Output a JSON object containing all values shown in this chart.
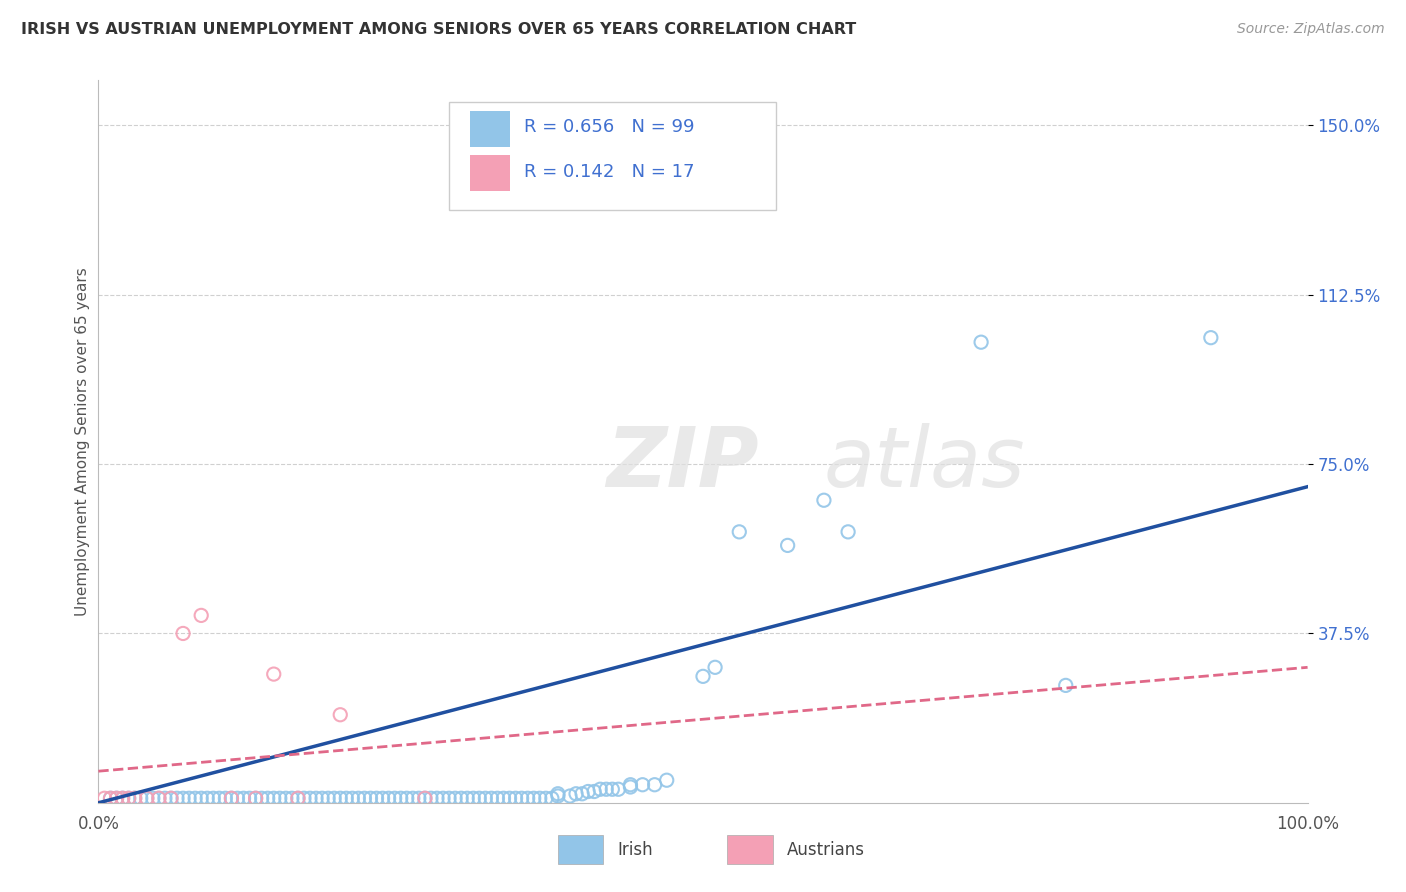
{
  "title": "IRISH VS AUSTRIAN UNEMPLOYMENT AMONG SENIORS OVER 65 YEARS CORRELATION CHART",
  "source": "Source: ZipAtlas.com",
  "ylabel": "Unemployment Among Seniors over 65 years",
  "xlim": [
    0.0,
    1.0
  ],
  "ylim": [
    0.0,
    1.6
  ],
  "xticks": [
    0.0,
    1.0
  ],
  "xticklabels": [
    "0.0%",
    "100.0%"
  ],
  "ytick_positions": [
    0.375,
    0.75,
    1.125,
    1.5
  ],
  "yticklabels": [
    "37.5%",
    "75.0%",
    "112.5%",
    "150.0%"
  ],
  "irish_color": "#92C5E8",
  "austrians_color": "#F4A0B5",
  "irish_line_color": "#2050A0",
  "austrians_line_color": "#E06888",
  "irish_R": 0.656,
  "irish_N": 99,
  "austrians_R": 0.142,
  "austrians_N": 17,
  "legend_text_color": "#4070D0",
  "background_color": "#FFFFFF",
  "grid_color": "#D0D0D0",
  "watermark_zip": "ZIP",
  "watermark_atlas": "atlas",
  "irish_label": "Irish",
  "austrians_label": "Austrians",
  "irish_x": [
    0.01,
    0.015,
    0.02,
    0.025,
    0.03,
    0.035,
    0.04,
    0.045,
    0.05,
    0.055,
    0.06,
    0.065,
    0.07,
    0.075,
    0.08,
    0.085,
    0.09,
    0.095,
    0.1,
    0.105,
    0.11,
    0.115,
    0.12,
    0.125,
    0.13,
    0.135,
    0.14,
    0.145,
    0.15,
    0.155,
    0.16,
    0.165,
    0.17,
    0.175,
    0.18,
    0.185,
    0.19,
    0.195,
    0.2,
    0.205,
    0.21,
    0.215,
    0.22,
    0.225,
    0.23,
    0.235,
    0.24,
    0.245,
    0.25,
    0.255,
    0.26,
    0.265,
    0.27,
    0.275,
    0.28,
    0.285,
    0.29,
    0.295,
    0.3,
    0.305,
    0.31,
    0.315,
    0.32,
    0.325,
    0.33,
    0.335,
    0.34,
    0.345,
    0.35,
    0.355,
    0.36,
    0.365,
    0.37,
    0.375,
    0.38,
    0.38,
    0.39,
    0.395,
    0.4,
    0.405,
    0.41,
    0.415,
    0.42,
    0.425,
    0.43,
    0.44,
    0.44,
    0.45,
    0.46,
    0.47,
    0.5,
    0.51,
    0.53,
    0.57,
    0.6,
    0.62,
    0.73,
    0.8,
    0.92
  ],
  "irish_y": [
    0.01,
    0.01,
    0.01,
    0.01,
    0.01,
    0.01,
    0.01,
    0.01,
    0.01,
    0.01,
    0.01,
    0.01,
    0.01,
    0.01,
    0.01,
    0.01,
    0.01,
    0.01,
    0.01,
    0.01,
    0.01,
    0.01,
    0.01,
    0.01,
    0.01,
    0.01,
    0.01,
    0.01,
    0.01,
    0.01,
    0.01,
    0.01,
    0.01,
    0.01,
    0.01,
    0.01,
    0.01,
    0.01,
    0.01,
    0.01,
    0.01,
    0.01,
    0.01,
    0.01,
    0.01,
    0.01,
    0.01,
    0.01,
    0.01,
    0.01,
    0.01,
    0.01,
    0.01,
    0.01,
    0.01,
    0.01,
    0.01,
    0.01,
    0.01,
    0.01,
    0.01,
    0.01,
    0.01,
    0.01,
    0.01,
    0.01,
    0.01,
    0.01,
    0.01,
    0.01,
    0.01,
    0.01,
    0.01,
    0.01,
    0.015,
    0.02,
    0.015,
    0.02,
    0.02,
    0.025,
    0.025,
    0.03,
    0.03,
    0.03,
    0.03,
    0.035,
    0.04,
    0.04,
    0.04,
    0.05,
    0.28,
    0.3,
    0.6,
    0.57,
    0.67,
    0.6,
    1.02,
    0.26,
    1.03
  ],
  "austrians_x": [
    0.005,
    0.01,
    0.015,
    0.02,
    0.025,
    0.03,
    0.04,
    0.05,
    0.06,
    0.07,
    0.085,
    0.11,
    0.13,
    0.145,
    0.165,
    0.2,
    0.27
  ],
  "austrians_y": [
    0.01,
    0.01,
    0.01,
    0.01,
    0.01,
    0.01,
    0.01,
    0.01,
    0.01,
    0.375,
    0.415,
    0.01,
    0.01,
    0.285,
    0.01,
    0.195,
    0.01
  ]
}
